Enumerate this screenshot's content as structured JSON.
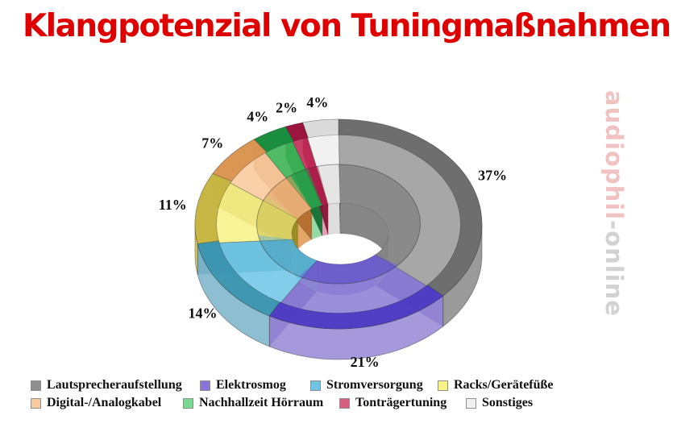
{
  "title": "Klangpotenzial von Tuningmaßnahmen",
  "watermark": {
    "primary": "audiophil",
    "secondary": "-online"
  },
  "chart_data": {
    "type": "pie",
    "variant": "3d-donut",
    "title": "Klangpotenzial von Tuningmaßnahmen",
    "unit": "%",
    "direction": "clockwise",
    "start_angle_deg": 0,
    "legend_position": "bottom",
    "values_sum": 100,
    "slices": [
      {
        "label": "Lautsprecheraufstellung",
        "value": 37,
        "colors": {
          "top": "#9d9d9d",
          "bevel": "#696969",
          "wall": "#8f8f8f",
          "inner": "#7f7f7f",
          "dark": "#4e4e4e",
          "swatch": "#8f8f8f"
        }
      },
      {
        "label": "Elektrosmog",
        "value": 21,
        "colors": {
          "top": "#9183d6",
          "bevel": "#4a37c2",
          "wall": "#9b8ed8",
          "inner": "#5d46d2",
          "dark": "#2f1f9e",
          "swatch": "#8a74dc"
        }
      },
      {
        "label": "Stromversorgung",
        "value": 14,
        "colors": {
          "top": "#74c9e8",
          "bevel": "#3a93ad",
          "wall": "#82b7cc",
          "inner": "#4da4c4",
          "dark": "#1e7a95",
          "swatch": "#6fc4e4"
        }
      },
      {
        "label": "Racks/Gerätefüße",
        "value": 11,
        "colors": {
          "top": "#f7f28b",
          "bevel": "#c2b13c",
          "wall": "#cfc35e",
          "inner": "#d8c94e",
          "dark": "#96881f",
          "swatch": "#f8f387"
        }
      },
      {
        "label": "Digital-/Analogkabel",
        "value": 7,
        "colors": {
          "top": "#f9cb9e",
          "bevel": "#d8904c",
          "wall": "#eab275",
          "inner": "#e2a160",
          "dark": "#b26c2c",
          "swatch": "#fac99c"
        }
      },
      {
        "label": "Nachhallzeit Hörraum",
        "value": 4,
        "colors": {
          "top": "#3cb457",
          "bevel": "#168a3b",
          "wall": "#7fd094",
          "inner": "#8ed8a1",
          "dark": "#0f6e2f",
          "swatch": "#7cd793"
        }
      },
      {
        "label": "Tonträgertuning",
        "value": 2,
        "colors": {
          "top": "#c22a56",
          "bevel": "#97123b",
          "wall": "#d2738f",
          "inner": "#e09cb2",
          "dark": "#871034",
          "swatch": "#d4607f"
        }
      },
      {
        "label": "Sonstiges",
        "value": 4,
        "colors": {
          "top": "#f0f0f0",
          "bevel": "#d8d8d8",
          "wall": "#e6e6e6",
          "inner": "#dcdcdc",
          "dark": "#bdbdbd",
          "swatch": "#f0f0f0"
        }
      }
    ]
  }
}
